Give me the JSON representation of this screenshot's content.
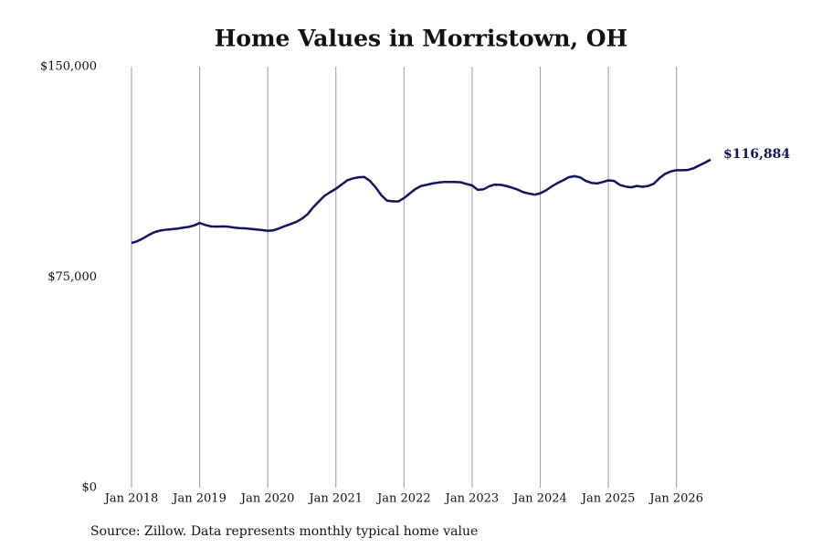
{
  "chart_data": {
    "type": "line",
    "title": "Home Values in Morristown, OH",
    "source": "Source: Zillow. Data represents monthly typical home value",
    "x": [
      "2018-01",
      "2018-02",
      "2018-03",
      "2018-04",
      "2018-05",
      "2018-06",
      "2018-07",
      "2018-08",
      "2018-09",
      "2018-10",
      "2018-11",
      "2018-12",
      "2019-01",
      "2019-02",
      "2019-03",
      "2019-04",
      "2019-05",
      "2019-06",
      "2019-07",
      "2019-08",
      "2019-09",
      "2019-10",
      "2019-11",
      "2019-12",
      "2020-01",
      "2020-02",
      "2020-03",
      "2020-04",
      "2020-05",
      "2020-06",
      "2020-07",
      "2020-08",
      "2020-09",
      "2020-10",
      "2020-11",
      "2020-12",
      "2021-01",
      "2021-02",
      "2021-03",
      "2021-04",
      "2021-05",
      "2021-06",
      "2021-07",
      "2021-08",
      "2021-09",
      "2021-10",
      "2021-11",
      "2021-12",
      "2022-01",
      "2022-02",
      "2022-03",
      "2022-04",
      "2022-05",
      "2022-06",
      "2022-07",
      "2022-08",
      "2022-09",
      "2022-10",
      "2022-11",
      "2022-12",
      "2023-01",
      "2023-02",
      "2023-03",
      "2023-04",
      "2023-05",
      "2023-06",
      "2023-07",
      "2023-08",
      "2023-09",
      "2023-10",
      "2023-11",
      "2023-12",
      "2024-01",
      "2024-02",
      "2024-03",
      "2024-04",
      "2024-05",
      "2024-06",
      "2024-07",
      "2024-08",
      "2024-09",
      "2024-10",
      "2024-11",
      "2024-12",
      "2025-01",
      "2025-02",
      "2025-03",
      "2025-04",
      "2025-05",
      "2025-06",
      "2025-07",
      "2025-08",
      "2025-09",
      "2025-10",
      "2025-11",
      "2025-12",
      "2026-01",
      "2026-02",
      "2026-03",
      "2026-04",
      "2026-05",
      "2026-06",
      "2026-07"
    ],
    "series": [
      {
        "name": "Home value",
        "color": "#14145e",
        "values": [
          87200,
          87800,
          88800,
          90000,
          91000,
          91600,
          91900,
          92100,
          92300,
          92600,
          92900,
          93400,
          94300,
          93600,
          93100,
          93000,
          93100,
          93000,
          92700,
          92500,
          92400,
          92200,
          92000,
          91800,
          91500,
          91700,
          92400,
          93200,
          93900,
          94700,
          95800,
          97400,
          99900,
          102000,
          104000,
          105300,
          106500,
          108000,
          109500,
          110200,
          110600,
          110700,
          109300,
          107000,
          104200,
          102300,
          102000,
          102000,
          103200,
          104800,
          106400,
          107500,
          107900,
          108400,
          108700,
          108900,
          108900,
          108900,
          108800,
          108200,
          107700,
          106100,
          106300,
          107400,
          108000,
          107900,
          107500,
          106900,
          106200,
          105300,
          104800,
          104400,
          104900,
          105900,
          107300,
          108500,
          109500,
          110600,
          111000,
          110600,
          109300,
          108600,
          108400,
          108900,
          109500,
          109300,
          107900,
          107300,
          107000,
          107500,
          107200,
          107500,
          108300,
          110300,
          111800,
          112700,
          113100,
          113100,
          113200,
          113800,
          114800,
          115800,
          116884
        ],
        "value_labels": [
          null,
          null,
          null,
          null,
          null,
          null,
          null,
          null,
          null,
          null,
          null,
          null,
          null,
          null,
          null,
          null,
          null,
          null,
          null,
          null,
          null,
          null,
          null,
          null,
          null,
          null,
          null,
          null,
          null,
          null,
          null,
          null,
          null,
          null,
          null,
          null,
          null,
          null,
          null,
          null,
          null,
          null,
          null,
          null,
          null,
          null,
          null,
          null,
          null,
          null,
          null,
          null,
          null,
          null,
          null,
          null,
          null,
          null,
          null,
          null,
          null,
          null,
          null,
          null,
          null,
          null,
          null,
          null,
          null,
          null,
          null,
          null,
          null,
          null,
          null,
          null,
          null,
          null,
          null,
          null,
          null,
          null,
          null,
          null,
          null,
          null,
          null,
          null,
          null,
          null,
          null,
          null,
          null,
          null,
          null,
          null,
          null,
          null,
          null,
          null,
          null,
          null,
          "$116,884"
        ]
      }
    ],
    "xlim": [
      "2018-01",
      "2026-07"
    ],
    "xticks": [
      {
        "value": "2018-01",
        "label": "Jan 2018"
      },
      {
        "value": "2019-01",
        "label": "Jan 2019"
      },
      {
        "value": "2020-01",
        "label": "Jan 2020"
      },
      {
        "value": "2021-01",
        "label": "Jan 2021"
      },
      {
        "value": "2022-01",
        "label": "Jan 2022"
      },
      {
        "value": "2023-01",
        "label": "Jan 2023"
      },
      {
        "value": "2024-01",
        "label": "Jan 2024"
      },
      {
        "value": "2025-01",
        "label": "Jan 2025"
      },
      {
        "value": "2026-01",
        "label": "Jan 2026"
      }
    ],
    "ylim": [
      0,
      150000
    ],
    "yticks": [
      {
        "value": 0,
        "label": "$0"
      },
      {
        "value": 75000,
        "label": "$75,000"
      },
      {
        "value": 150000,
        "label": "$150,000"
      }
    ],
    "grid": "x"
  }
}
